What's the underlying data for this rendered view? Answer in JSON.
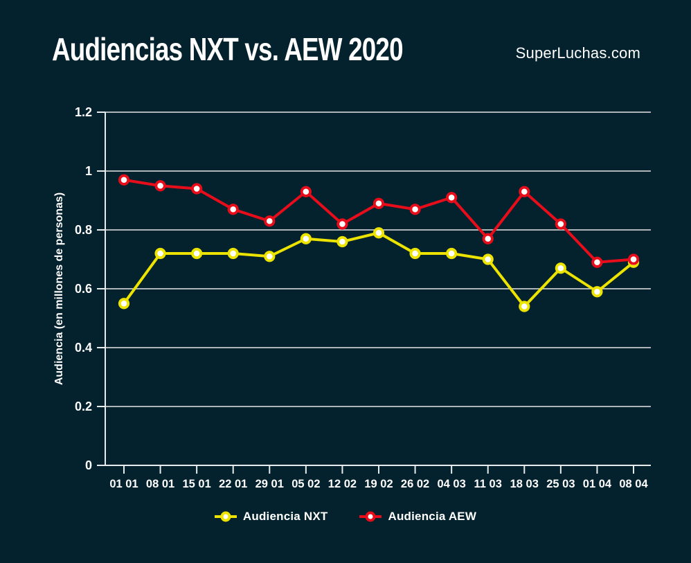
{
  "header": {
    "title": "Audiencias NXT vs. AEW 2020",
    "brand": "SuperLuchas.com"
  },
  "colors": {
    "background": "#04222e",
    "grid": "#aeb6ba",
    "axis": "#e9eced",
    "tick_text": "#ffffff",
    "marker_fill": "#ffffff"
  },
  "chart_data": {
    "type": "line",
    "title": "Audiencias NXT vs. AEW 2020",
    "categories": [
      "01 01",
      "08 01",
      "15 01",
      "22 01",
      "29 01",
      "05 02",
      "12 02",
      "19 02",
      "26 02",
      "04 03",
      "11 03",
      "18 03",
      "25 03",
      "01 04",
      "08 04"
    ],
    "series": [
      {
        "name": "Audiencia NXT",
        "color": "#ece400",
        "values": [
          0.55,
          0.72,
          0.72,
          0.72,
          0.71,
          0.77,
          0.76,
          0.79,
          0.72,
          0.72,
          0.7,
          0.54,
          0.67,
          0.59,
          0.69
        ]
      },
      {
        "name": "Audiencia AEW",
        "color": "#e80d1a",
        "values": [
          0.97,
          0.95,
          0.94,
          0.87,
          0.83,
          0.93,
          0.82,
          0.89,
          0.87,
          0.91,
          0.77,
          0.93,
          0.82,
          0.69,
          0.7
        ]
      }
    ],
    "xlabel": "",
    "ylabel": "Audiencia (en millones de personas)",
    "ylim": [
      0,
      1.2
    ],
    "ytick_step": 0.2,
    "grid": "horizontal",
    "legend_position": "bottom"
  }
}
